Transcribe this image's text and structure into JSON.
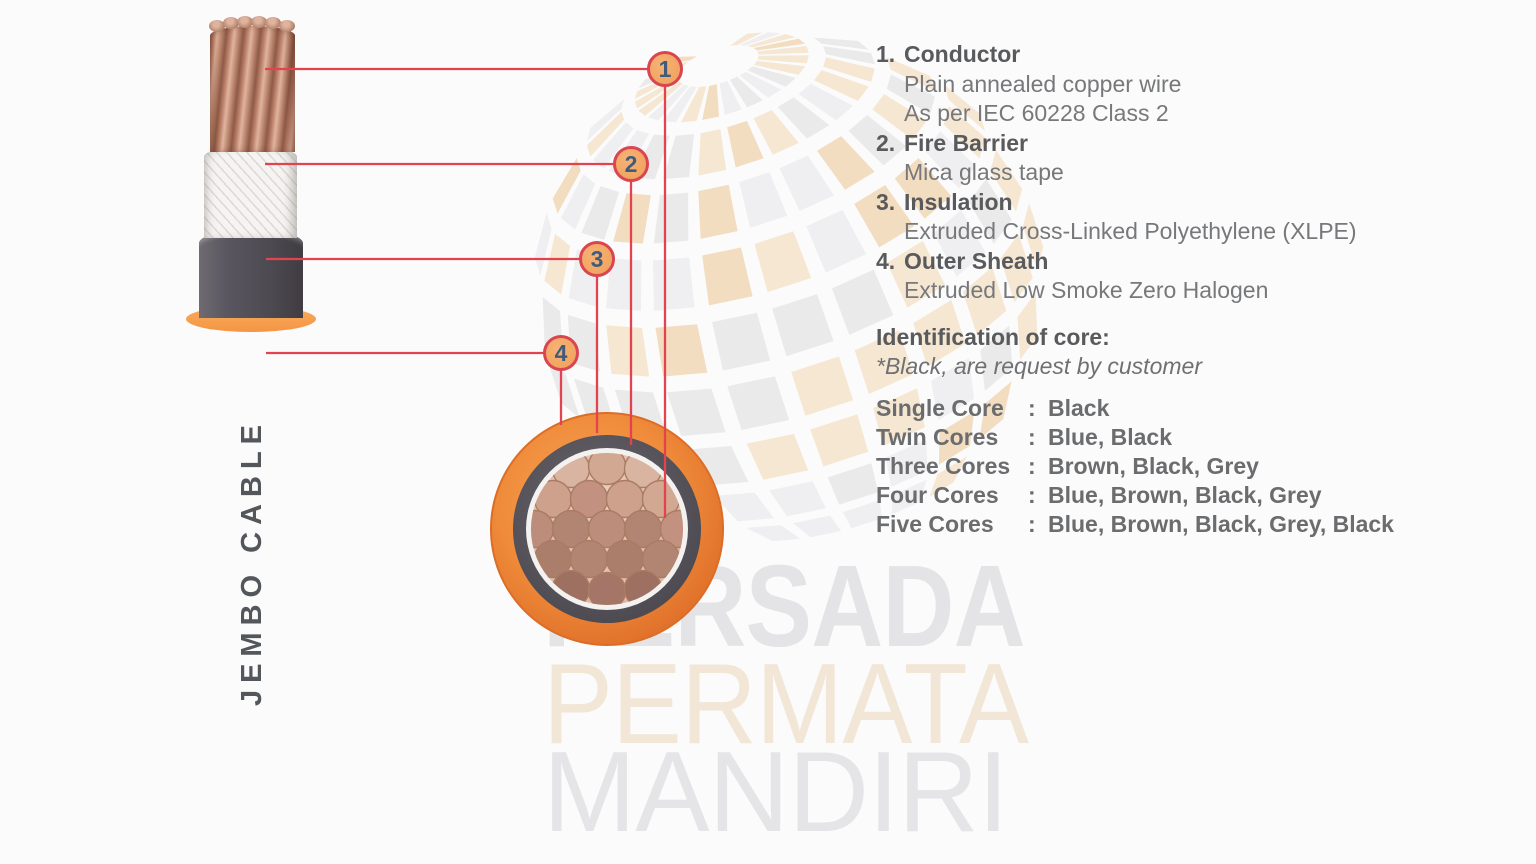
{
  "brand": {
    "cable_label": "JEMBO CABLE"
  },
  "callouts": [
    {
      "num": "1",
      "num_dot": "1.",
      "title": "Conductor",
      "lines": [
        "Plain annealed copper wire",
        "As per IEC 60228 Class 2"
      ]
    },
    {
      "num": "2",
      "num_dot": "2.",
      "title": "Fire Barrier",
      "lines": [
        "Mica glass tape"
      ]
    },
    {
      "num": "3",
      "num_dot": "3.",
      "title": "Insulation",
      "lines": [
        "Extruded Cross-Linked Polyethylene (XLPE)"
      ]
    },
    {
      "num": "4",
      "num_dot": "4.",
      "title": "Outer Sheath",
      "lines": [
        "Extruded Low Smoke Zero Halogen"
      ]
    }
  ],
  "identification": {
    "heading": "Identification of core:",
    "note": "*Black, are request by customer",
    "separator": ":",
    "rows": [
      {
        "label": "Single Core",
        "value": "Black"
      },
      {
        "label": "Twin Cores",
        "value": "Blue, Black"
      },
      {
        "label": "Three Cores",
        "value": "Brown, Black, Grey"
      },
      {
        "label": "Four Cores",
        "value": "Blue, Brown, Black, Grey"
      },
      {
        "label": "Five Cores",
        "value": "Blue, Brown, Black, Grey, Black"
      }
    ]
  },
  "watermark": {
    "line1": "PERSADA",
    "line2": "PERMATA",
    "line3": "MANDIRI"
  },
  "colors": {
    "leader_red": "#e2434e",
    "marker_fill": "#f3a765",
    "marker_border": "#d94550",
    "marker_number": "#3f5c7d",
    "outer_sheath_orange": "#ef8b3a",
    "insulation_grey": "#56535a",
    "fire_barrier_white": "#f5f3f1",
    "conductor_copper": "#c08a74",
    "watermark_grey": "#e4e4e6",
    "watermark_beige": "#f2e6d7",
    "text_heading": "#595a5c",
    "text_body": "#77787a"
  }
}
